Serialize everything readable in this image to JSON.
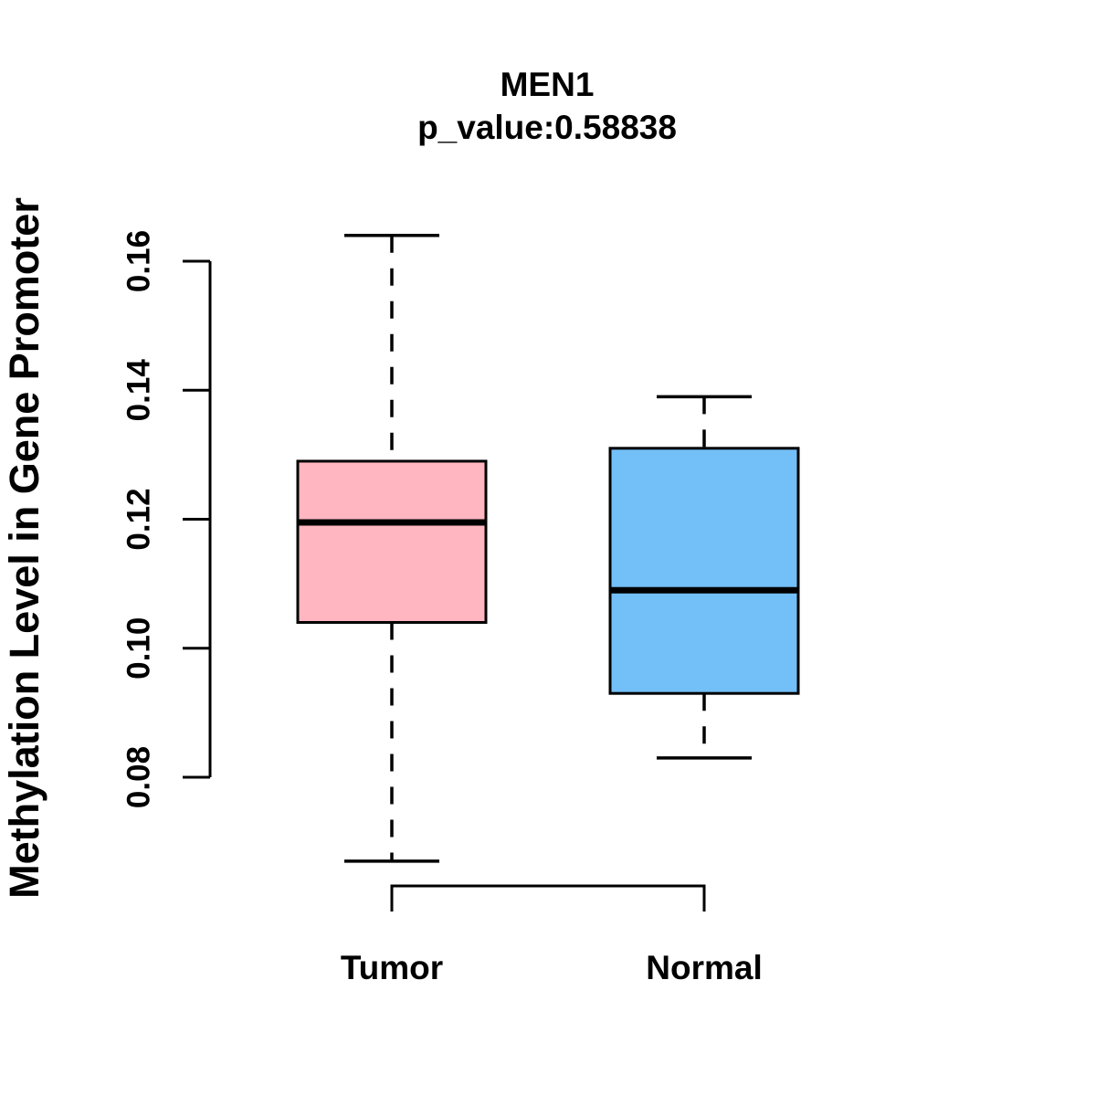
{
  "chart_data": {
    "type": "boxplot",
    "title": "MEN1",
    "subtitle": "p_value:0.58838",
    "ylabel": "Methylation Level in Gene Promoter",
    "xlabel": "",
    "categories": [
      "Tumor",
      "Normal"
    ],
    "yticks": [
      "0.08",
      "0.10",
      "0.12",
      "0.14",
      "0.16"
    ],
    "ylim": [
      0.065,
      0.166
    ],
    "grid": false,
    "legend": "none",
    "line_color": "#000000",
    "background_color": "#ffffff",
    "series": [
      {
        "name": "Tumor",
        "fill_color": "#FFB6C1",
        "whisker_low": 0.067,
        "q1": 0.104,
        "median": 0.1195,
        "q3": 0.129,
        "whisker_high": 0.164
      },
      {
        "name": "Normal",
        "fill_color": "#73BFF7",
        "whisker_low": 0.083,
        "q1": 0.093,
        "median": 0.109,
        "q3": 0.131,
        "whisker_high": 0.139
      }
    ]
  }
}
